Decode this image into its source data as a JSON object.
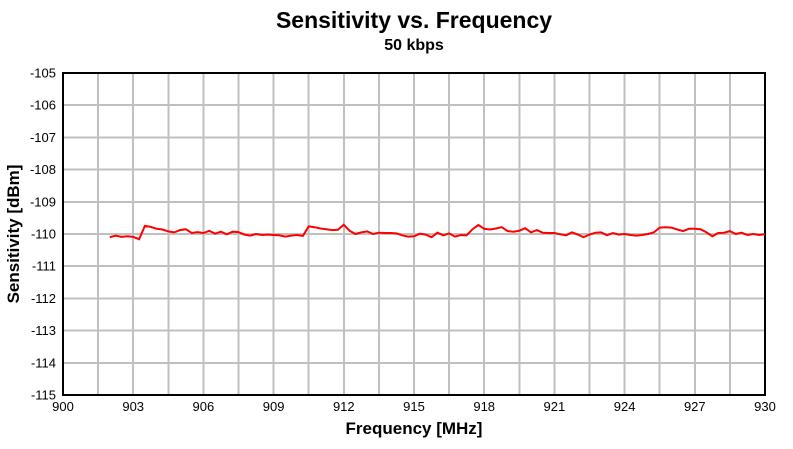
{
  "chart_data": {
    "type": "line",
    "title": "Sensitivity vs. Frequency",
    "subtitle": "50 kbps",
    "xlabel": "Frequency [MHz]",
    "ylabel": "Sensitivity [dBm]",
    "xlim": [
      900,
      930
    ],
    "ylim": [
      -115,
      -105
    ],
    "x_tick_labels": [
      "900",
      "903",
      "906",
      "909",
      "912",
      "915",
      "918",
      "921",
      "924",
      "927",
      "930"
    ],
    "y_tick_labels": [
      "-105",
      "-106",
      "-107",
      "-108",
      "-109",
      "-110",
      "-111",
      "-112",
      "-113",
      "-114",
      "-115"
    ],
    "x_gridline_step": 1.5,
    "y_gridline_step": 1,
    "grid": true,
    "legend_position": "none",
    "colors": {
      "series": "#ff0000",
      "grid": "#c0c0c0",
      "axis_border": "#000000",
      "text": "#000000",
      "background": "#ffffff"
    },
    "series": [
      {
        "name": "Sensitivity",
        "color": "#ff0000",
        "x": [
          902,
          902.25,
          902.5,
          902.75,
          903,
          903.25,
          903.5,
          903.75,
          904,
          904.25,
          904.5,
          904.75,
          905,
          905.25,
          905.5,
          905.75,
          906,
          906.25,
          906.5,
          906.75,
          907,
          907.25,
          907.5,
          907.75,
          908,
          908.25,
          908.5,
          908.75,
          909,
          909.25,
          909.5,
          909.75,
          910,
          910.25,
          910.5,
          910.75,
          911,
          911.25,
          911.5,
          911.75,
          912,
          912.25,
          912.5,
          912.75,
          913,
          913.25,
          913.5,
          913.75,
          914,
          914.25,
          914.5,
          914.75,
          915,
          915.25,
          915.5,
          915.75,
          916,
          916.25,
          916.5,
          916.75,
          917,
          917.25,
          917.5,
          917.75,
          918,
          918.25,
          918.5,
          918.75,
          919,
          919.25,
          919.5,
          919.75,
          920,
          920.25,
          920.5,
          920.75,
          921,
          921.25,
          921.5,
          921.75,
          922,
          922.25,
          922.5,
          922.75,
          923,
          923.25,
          923.5,
          923.75,
          924,
          924.25,
          924.5,
          924.75,
          925,
          925.25,
          925.5,
          925.75,
          926,
          926.25,
          926.5,
          926.75,
          927,
          927.25,
          927.5,
          927.75,
          928,
          928.25,
          928.5,
          928.75,
          929,
          929.25,
          929.5,
          929.75,
          930
        ],
        "y": [
          -110.1,
          -110.05,
          -110.09,
          -110.07,
          -110.09,
          -110.16,
          -109.75,
          -109.78,
          -109.84,
          -109.86,
          -109.92,
          -109.95,
          -109.88,
          -109.85,
          -109.97,
          -109.94,
          -109.97,
          -109.9,
          -109.99,
          -109.93,
          -110.01,
          -109.93,
          -109.94,
          -110.02,
          -110.05,
          -110.0,
          -110.03,
          -110.02,
          -110.03,
          -110.04,
          -110.08,
          -110.05,
          -110.03,
          -110.06,
          -109.76,
          -109.79,
          -109.83,
          -109.85,
          -109.88,
          -109.87,
          -109.71,
          -109.9,
          -110.0,
          -109.95,
          -109.92,
          -110.0,
          -109.96,
          -109.97,
          -109.97,
          -109.98,
          -110.04,
          -110.08,
          -110.07,
          -109.99,
          -110.02,
          -110.1,
          -109.96,
          -110.04,
          -109.98,
          -110.08,
          -110.03,
          -110.04,
          -109.85,
          -109.72,
          -109.84,
          -109.86,
          -109.83,
          -109.79,
          -109.91,
          -109.93,
          -109.9,
          -109.82,
          -109.95,
          -109.88,
          -109.96,
          -109.97,
          -109.97,
          -110.01,
          -110.04,
          -109.95,
          -110.02,
          -110.1,
          -110.02,
          -109.96,
          -109.95,
          -110.04,
          -109.97,
          -110.02,
          -110.0,
          -110.03,
          -110.05,
          -110.03,
          -110.0,
          -109.95,
          -109.8,
          -109.79,
          -109.8,
          -109.86,
          -109.91,
          -109.84,
          -109.84,
          -109.85,
          -109.95,
          -110.07,
          -109.97,
          -109.96,
          -109.91,
          -110.0,
          -109.96,
          -110.03,
          -110.0,
          -110.03,
          -110.01
        ]
      }
    ]
  }
}
